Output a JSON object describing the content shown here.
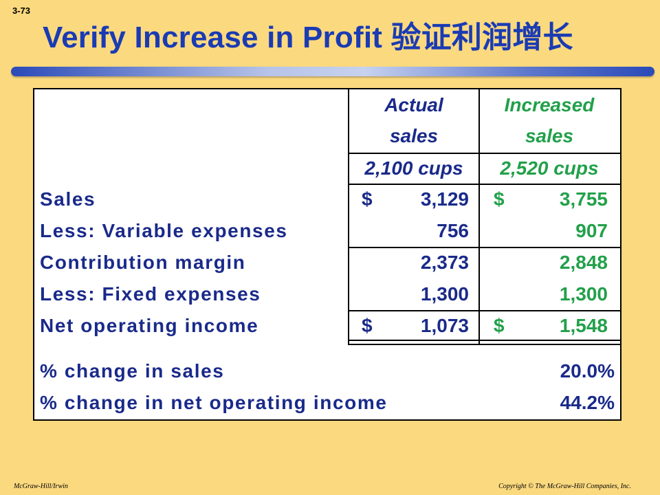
{
  "slide": {
    "number": "3-73",
    "title": "Verify Increase in Profit 验证利润增长"
  },
  "table": {
    "headers": {
      "actual": [
        "Actual",
        "sales"
      ],
      "increased": [
        "Increased",
        "sales"
      ]
    },
    "units": {
      "actual": "2,100 cups",
      "increased": "2,520 cups"
    },
    "rows": [
      {
        "label": "Sales",
        "actual_cur": "$",
        "actual": "3,129",
        "increased_cur": "$",
        "increased": "3,755"
      },
      {
        "label": "Less:  Variable expenses",
        "actual_cur": "",
        "actual": "756",
        "increased_cur": "",
        "increased": "907"
      },
      {
        "label": "Contribution margin",
        "actual_cur": "",
        "actual": "2,373",
        "increased_cur": "",
        "increased": "2,848"
      },
      {
        "label": "Less: Fixed expenses",
        "actual_cur": "",
        "actual": "1,300",
        "increased_cur": "",
        "increased": "1,300"
      },
      {
        "label": "Net operating income",
        "actual_cur": "$",
        "actual": "1,073",
        "increased_cur": "$",
        "increased": "1,548"
      }
    ],
    "changes": [
      {
        "label": "% change in sales",
        "value": "20.0%"
      },
      {
        "label": "% change in net operating income",
        "value": "44.2%"
      }
    ]
  },
  "footer": {
    "left": "McGraw-Hill/Irwin",
    "right": "Copyright © The McGraw-Hill Companies, Inc."
  },
  "colors": {
    "background": "#fbd97f",
    "title": "#1a3bb3",
    "label": "#1a2a8a",
    "increased": "#22a04a"
  }
}
